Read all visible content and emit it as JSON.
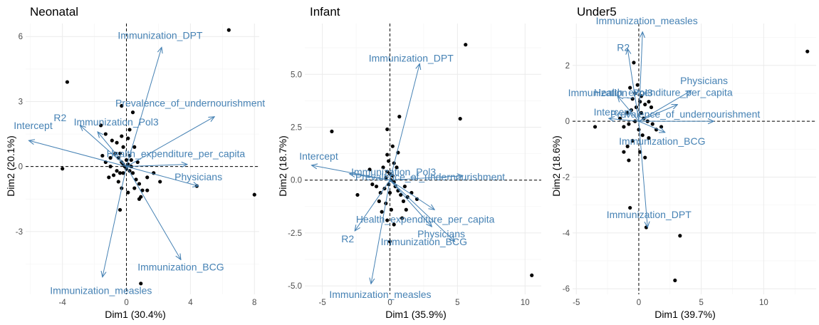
{
  "chart_data": [
    {
      "type": "scatter",
      "title": "Neonatal",
      "xlabel": "Dim1 (30.4%)",
      "ylabel": "Dim2 (20.1%)",
      "xlim": [
        -6.3,
        8.3
      ],
      "ylim": [
        -5.9,
        6.6
      ],
      "xticks": [
        -4,
        0,
        4,
        8
      ],
      "yticks": [
        -3,
        0,
        3,
        6
      ],
      "grid": true,
      "points": [
        [
          6.4,
          6.3
        ],
        [
          -3.7,
          3.9
        ],
        [
          8.0,
          -1.3
        ],
        [
          4.4,
          -0.9
        ],
        [
          -4.0,
          -0.1
        ],
        [
          0.9,
          -5.4
        ],
        [
          -1.6,
          1.9
        ],
        [
          -1.3,
          1.5
        ],
        [
          -0.3,
          2.8
        ],
        [
          0.4,
          2.5
        ],
        [
          0.2,
          1.7
        ],
        [
          -0.6,
          1.1
        ],
        [
          -0.2,
          0.9
        ],
        [
          -0.3,
          1.4
        ],
        [
          0.1,
          1.3
        ],
        [
          -0.9,
          1.2
        ],
        [
          0.5,
          0.9
        ],
        [
          -1.5,
          0.5
        ],
        [
          -1.3,
          0.2
        ],
        [
          -1.0,
          0.4
        ],
        [
          -0.7,
          0.6
        ],
        [
          -0.5,
          0.4
        ],
        [
          -0.3,
          0.2
        ],
        [
          -0.2,
          0.1
        ],
        [
          -0.1,
          0.0
        ],
        [
          0.0,
          -0.1
        ],
        [
          0.1,
          0.1
        ],
        [
          0.2,
          -0.2
        ],
        [
          0.3,
          0.3
        ],
        [
          0.4,
          -0.3
        ],
        [
          -0.4,
          -0.3
        ],
        [
          -0.6,
          -0.2
        ],
        [
          -0.8,
          -0.4
        ],
        [
          -1.1,
          -0.5
        ],
        [
          0.6,
          -0.6
        ],
        [
          0.8,
          -0.8
        ],
        [
          1.0,
          -1.1
        ],
        [
          1.3,
          -0.5
        ],
        [
          1.7,
          -0.3
        ],
        [
          2.1,
          -0.7
        ],
        [
          -0.5,
          -0.7
        ],
        [
          -0.3,
          -1.0
        ],
        [
          0.1,
          -1.2
        ],
        [
          0.5,
          -1.0
        ],
        [
          0.9,
          -1.4
        ],
        [
          -0.4,
          -2.0
        ],
        [
          0.8,
          -1.5
        ],
        [
          1.3,
          -1.1
        ],
        [
          -1.0,
          0.0
        ],
        [
          0.0,
          0.3
        ],
        [
          0.3,
          0.0
        ],
        [
          -0.2,
          -0.3
        ],
        [
          0.2,
          0.5
        ],
        [
          -0.4,
          0.6
        ],
        [
          0.7,
          0.2
        ]
      ],
      "vectors": [
        {
          "name": "Immunization_DPT",
          "x": 2.2,
          "y": 5.5
        },
        {
          "name": "Prevalence_of_undernourishment",
          "x": 5.5,
          "y": 2.3
        },
        {
          "name": "R2",
          "x": -2.9,
          "y": 1.9
        },
        {
          "name": "Intercept",
          "x": -6.1,
          "y": 1.2
        },
        {
          "name": "Immunization_Pol3",
          "x": -1.8,
          "y": 1.6
        },
        {
          "name": "Health_expenditure_per_capita",
          "x": 3.8,
          "y": 0.1
        },
        {
          "name": "Physicians",
          "x": 4.5,
          "y": -0.9
        },
        {
          "name": "Immunization_BCG",
          "x": 3.4,
          "y": -4.3
        },
        {
          "name": "Immunization_measles",
          "x": -1.5,
          "y": -5.1
        }
      ]
    },
    {
      "type": "scatter",
      "title": "Infant",
      "xlabel": "Dim1 (35.9%)",
      "ylabel": "Dim2 (18.7%)",
      "xlim": [
        -6.3,
        11.2
      ],
      "ylim": [
        -5.4,
        7.4
      ],
      "xticks": [
        -5,
        0,
        5,
        10
      ],
      "yticks": [
        -5.0,
        -2.5,
        0.0,
        2.5,
        5.0
      ],
      "grid": true,
      "points": [
        [
          5.6,
          6.4
        ],
        [
          10.5,
          -4.5
        ],
        [
          5.2,
          2.9
        ],
        [
          -4.3,
          2.3
        ],
        [
          0.7,
          3.0
        ],
        [
          -0.2,
          2.4
        ],
        [
          0.2,
          1.6
        ],
        [
          -0.2,
          1.2
        ],
        [
          0.6,
          1.3
        ],
        [
          0.3,
          0.8
        ],
        [
          -0.5,
          0.6
        ],
        [
          -0.2,
          0.4
        ],
        [
          0.0,
          0.3
        ],
        [
          0.2,
          0.2
        ],
        [
          -0.3,
          0.1
        ],
        [
          0.1,
          0.0
        ],
        [
          0.3,
          -0.1
        ],
        [
          -0.1,
          -0.2
        ],
        [
          0.4,
          -0.3
        ],
        [
          0.6,
          -0.5
        ],
        [
          0.8,
          -0.7
        ],
        [
          1.0,
          -1.0
        ],
        [
          1.3,
          -0.8
        ],
        [
          1.6,
          -0.6
        ],
        [
          2.0,
          -0.9
        ],
        [
          -0.4,
          -0.4
        ],
        [
          -0.7,
          -0.6
        ],
        [
          -1.0,
          -0.3
        ],
        [
          -1.3,
          -0.2
        ],
        [
          -2.4,
          -0.7
        ],
        [
          -0.3,
          -1.1
        ],
        [
          0.1,
          -1.4
        ],
        [
          -0.6,
          -1.5
        ],
        [
          -0.2,
          -1.9
        ],
        [
          0.3,
          -2.1
        ],
        [
          0.0,
          -2.9
        ],
        [
          1.2,
          -1.4
        ],
        [
          0.9,
          -1.8
        ],
        [
          -0.8,
          -1.0
        ],
        [
          0.0,
          -0.6
        ],
        [
          0.5,
          0.6
        ],
        [
          -0.1,
          0.9
        ],
        [
          1.1,
          -0.3
        ],
        [
          -1.5,
          0.5
        ]
      ],
      "vectors": [
        {
          "name": "Immunization_DPT",
          "x": 2.2,
          "y": 5.5
        },
        {
          "name": "Intercept",
          "x": -5.8,
          "y": 0.7
        },
        {
          "name": "Immunization_Pol3",
          "x": -3.0,
          "y": 0.3
        },
        {
          "name": "Prevalence_of_undernourishment",
          "x": 5.4,
          "y": 0.2
        },
        {
          "name": "Health_expenditure_per_capita",
          "x": 3.3,
          "y": -1.4
        },
        {
          "name": "Immunization_BCG",
          "x": 3.1,
          "y": -2.2
        },
        {
          "name": "Physicians",
          "x": 4.8,
          "y": -2.9
        },
        {
          "name": "R2",
          "x": -2.6,
          "y": -2.4
        },
        {
          "name": "Immunization_measles",
          "x": -1.4,
          "y": -4.9
        }
      ]
    },
    {
      "type": "scatter",
      "title": "Under5",
      "xlabel": "Dim1 (39.7%)",
      "ylabel": "Dim2 (18.6%)",
      "xlim": [
        -5.3,
        14.2
      ],
      "ylim": [
        -6.2,
        3.5
      ],
      "xticks": [
        -5,
        0,
        5,
        10
      ],
      "yticks": [
        -6,
        -4,
        -2,
        0,
        2
      ],
      "grid": true,
      "points": [
        [
          13.5,
          2.5
        ],
        [
          3.3,
          -4.1
        ],
        [
          2.9,
          -5.7
        ],
        [
          0.6,
          -3.8
        ],
        [
          -0.7,
          -3.1
        ],
        [
          -3.5,
          -0.2
        ],
        [
          -0.4,
          2.1
        ],
        [
          -0.7,
          1.2
        ],
        [
          -0.3,
          1.0
        ],
        [
          -0.5,
          0.8
        ],
        [
          0.1,
          0.7
        ],
        [
          0.5,
          0.6
        ],
        [
          0.8,
          0.7
        ],
        [
          1.0,
          0.5
        ],
        [
          -0.2,
          0.5
        ],
        [
          -0.6,
          0.4
        ],
        [
          -0.9,
          0.3
        ],
        [
          0.2,
          0.3
        ],
        [
          0.4,
          0.1
        ],
        [
          0.7,
          0.0
        ],
        [
          1.1,
          -0.1
        ],
        [
          1.4,
          -0.3
        ],
        [
          1.8,
          -0.2
        ],
        [
          -0.3,
          0.0
        ],
        [
          -0.8,
          -0.1
        ],
        [
          -1.2,
          -0.2
        ],
        [
          -1.5,
          0.1
        ],
        [
          0.0,
          -0.3
        ],
        [
          0.3,
          -0.5
        ],
        [
          0.8,
          -0.6
        ],
        [
          -0.5,
          -0.7
        ],
        [
          -0.9,
          -0.9
        ],
        [
          -1.2,
          -1.1
        ],
        [
          -0.8,
          -1.4
        ],
        [
          0.1,
          -1.1
        ],
        [
          0.5,
          -1.3
        ],
        [
          0.2,
          0.9
        ],
        [
          -0.1,
          1.3
        ]
      ],
      "vectors": [
        {
          "name": "Immunization_measles",
          "x": 0.3,
          "y": 3.2
        },
        {
          "name": "R2",
          "x": -0.9,
          "y": 2.6
        },
        {
          "name": "Physicians",
          "x": 4.2,
          "y": 1.1
        },
        {
          "name": "Immunization_Pol3",
          "x": -1.7,
          "y": 0.9
        },
        {
          "name": "Health_expenditure_per_capita",
          "x": 3.1,
          "y": 0.6
        },
        {
          "name": "Prevalence_of_undernourishment",
          "x": 6.0,
          "y": 0.0
        },
        {
          "name": "Intercept",
          "x": -2.4,
          "y": 0.1
        },
        {
          "name": "Immunization_BCG",
          "x": 2.1,
          "y": -0.4
        },
        {
          "name": "Immunization_DPT",
          "x": 0.7,
          "y": -3.8
        }
      ]
    }
  ]
}
